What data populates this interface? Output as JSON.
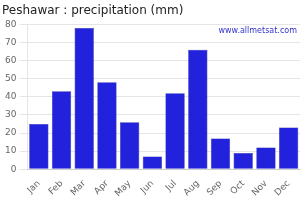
{
  "chart_data": {
    "type": "bar",
    "title": "Peshawar : precipitation (mm)",
    "categories": [
      "Jan",
      "Feb",
      "Mar",
      "Apr",
      "May",
      "Jun",
      "Jul",
      "Aug",
      "Sep",
      "Oct",
      "Nov",
      "Dec"
    ],
    "values": [
      25,
      43,
      78,
      48,
      26,
      7,
      42,
      66,
      17,
      9,
      12,
      23
    ],
    "color": "#2222dd",
    "ylim": [
      0,
      80
    ],
    "yticks": [
      0,
      10,
      20,
      30,
      40,
      50,
      60,
      70,
      80
    ],
    "grid": true,
    "annotation": "www.allmetsat.com"
  }
}
